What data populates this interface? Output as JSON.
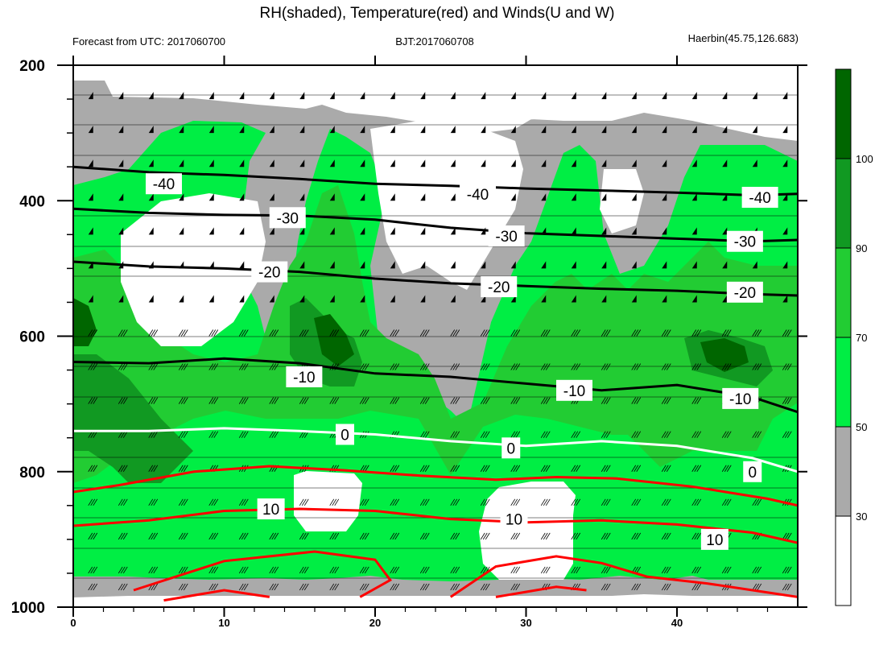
{
  "title": "RH(shaded), Temperature(red) and Winds(U and W)",
  "left_subtitle": "Forecast from UTC: 2017060700",
  "center_subtitle": "BJT:2017060708",
  "right_subtitle": "Haerbin(45.75,126.683)",
  "chart_data": {
    "type": "heatmap",
    "description_fields": [
      "rh_shading",
      "temperature_contours",
      "wind_barbs"
    ],
    "x": {
      "ticks": [
        0,
        10,
        20,
        30,
        40
      ],
      "range": [
        0,
        48
      ]
    },
    "y": {
      "ticks": [
        200,
        400,
        600,
        800,
        1000
      ],
      "range": [
        1000,
        200
      ],
      "reversed": true
    },
    "colorbar": {
      "levels": [
        30,
        50,
        70,
        90,
        100
      ],
      "colors": [
        "#ffffff",
        "#aaaaaa",
        "#00ee44",
        "#22cc33",
        "#119922",
        "#006600"
      ]
    },
    "rh_regions": [
      {
        "level": "dry",
        "color": "#ffffff"
      },
      {
        "level": "30-50",
        "color": "#aaaaaa"
      },
      {
        "level": "50-70",
        "color": "#00ee44"
      },
      {
        "level": "70-90",
        "color": "#22cc33"
      },
      {
        "level": "90-100",
        "color": "#119922"
      },
      {
        "level": ">100",
        "color": "#006600"
      }
    ],
    "temperature_contours": [
      {
        "value": -40,
        "color": "#000000",
        "points": [
          [
            0,
            350
          ],
          [
            5,
            358
          ],
          [
            10,
            362
          ],
          [
            15,
            368
          ],
          [
            20,
            375
          ],
          [
            25,
            378
          ],
          [
            30,
            382
          ],
          [
            35,
            385
          ],
          [
            40,
            388
          ],
          [
            45,
            392
          ],
          [
            48,
            390
          ]
        ]
      },
      {
        "value": -30,
        "color": "#000000",
        "points": [
          [
            0,
            412
          ],
          [
            5,
            418
          ],
          [
            10,
            421
          ],
          [
            15,
            422
          ],
          [
            20,
            428
          ],
          [
            25,
            440
          ],
          [
            30,
            448
          ],
          [
            35,
            452
          ],
          [
            40,
            456
          ],
          [
            45,
            460
          ],
          [
            48,
            458
          ]
        ]
      },
      {
        "value": -20,
        "color": "#000000",
        "points": [
          [
            0,
            490
          ],
          [
            5,
            497
          ],
          [
            10,
            500
          ],
          [
            15,
            505
          ],
          [
            20,
            515
          ],
          [
            25,
            522
          ],
          [
            30,
            526
          ],
          [
            35,
            530
          ],
          [
            40,
            533
          ],
          [
            45,
            538
          ],
          [
            48,
            540
          ]
        ]
      },
      {
        "value": -10,
        "color": "#000000",
        "points": [
          [
            0,
            638
          ],
          [
            5,
            640
          ],
          [
            10,
            633
          ],
          [
            15,
            640
          ],
          [
            20,
            655
          ],
          [
            25,
            660
          ],
          [
            30,
            670
          ],
          [
            35,
            680
          ],
          [
            40,
            672
          ],
          [
            45,
            690
          ],
          [
            48,
            712
          ]
        ]
      },
      {
        "value": 0,
        "color": "#ffffff",
        "points": [
          [
            0,
            740
          ],
          [
            5,
            740
          ],
          [
            10,
            736
          ],
          [
            15,
            740
          ],
          [
            20,
            745
          ],
          [
            25,
            755
          ],
          [
            30,
            762
          ],
          [
            35,
            755
          ],
          [
            40,
            762
          ],
          [
            45,
            780
          ],
          [
            48,
            800
          ]
        ]
      },
      {
        "value": 10,
        "color": "#ff0000",
        "points": [
          [
            0,
            880
          ],
          [
            5,
            872
          ],
          [
            10,
            858
          ],
          [
            15,
            855
          ],
          [
            20,
            858
          ],
          [
            25,
            870
          ],
          [
            30,
            875
          ],
          [
            35,
            872
          ],
          [
            40,
            878
          ],
          [
            45,
            890
          ],
          [
            48,
            905
          ]
        ]
      }
    ],
    "temperature_labels": [
      "-40",
      "-30",
      "-20",
      "-10",
      "0",
      "10"
    ]
  }
}
